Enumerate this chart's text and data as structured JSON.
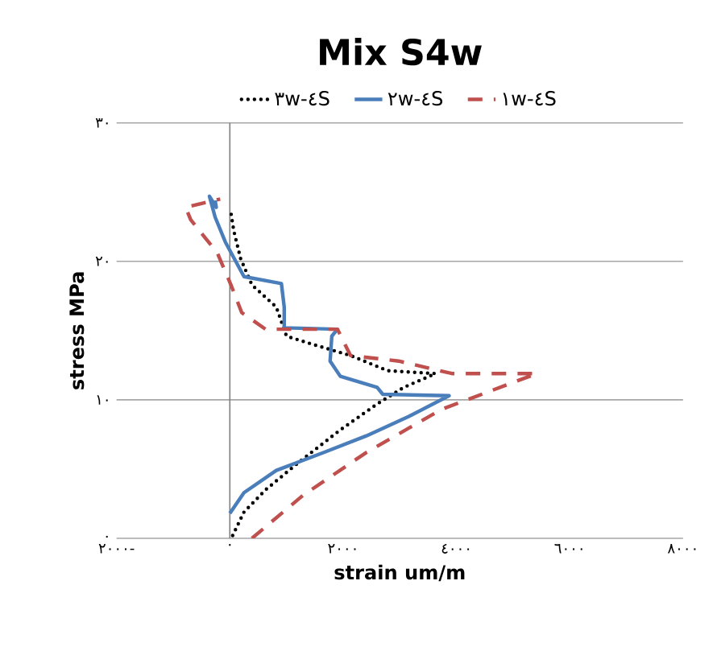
{
  "chart_data": {
    "type": "line",
    "title": "Mix S4w",
    "xlabel": "strain um/m",
    "ylabel": "stress MPa",
    "legend": "top",
    "grid": "y",
    "marker": "none",
    "xlim": [
      -2000,
      8000
    ],
    "ylim": [
      0,
      30
    ],
    "xticks": [
      {
        "value": -2000,
        "label": "٢٠٠٠-"
      },
      {
        "value": 0,
        "label": "٠"
      },
      {
        "value": 2000,
        "label": "٢٠٠٠"
      },
      {
        "value": 4000,
        "label": "٤٠٠٠"
      },
      {
        "value": 6000,
        "label": "٦٠٠٠"
      },
      {
        "value": 8000,
        "label": "٨٠٠٠"
      }
    ],
    "yticks": [
      {
        "value": 0,
        "label": "٠"
      },
      {
        "value": 10,
        "label": "١٠"
      },
      {
        "value": 20,
        "label": "٢٠"
      },
      {
        "value": 30,
        "label": "٣٠"
      }
    ],
    "series": [
      {
        "name": "٣w-٤S",
        "color": "#000000",
        "line_style": "dotted",
        "x": [
          50,
          250,
          630,
          1190,
          1940,
          2600,
          3070,
          3630,
          2790,
          2130,
          1470,
          1000,
          820,
          390,
          190,
          70,
          20
        ],
        "values": [
          0.2,
          1.9,
          3.5,
          5.4,
          7.8,
          9.7,
          10.9,
          11.9,
          12.1,
          13.2,
          14.0,
          14.6,
          16.7,
          18.3,
          20.2,
          22.2,
          23.5
        ]
      },
      {
        "name": "٢w-٤S",
        "color": "#4a7ebb",
        "line_style": "solid",
        "x": [
          0,
          250,
          820,
          1660,
          2410,
          3160,
          3870,
          2700,
          2600,
          1950,
          1770,
          1800,
          1900,
          960,
          960,
          910,
          250,
          -80,
          -260,
          -360,
          -240,
          -260
        ],
        "values": [
          1.8,
          3.3,
          4.9,
          6.2,
          7.4,
          8.8,
          10.3,
          10.4,
          10.9,
          11.7,
          12.8,
          14.6,
          15.1,
          15.2,
          16.7,
          18.4,
          18.9,
          21.4,
          23.2,
          24.7,
          23.9,
          24.4
        ]
      },
      {
        "name": "١w-٤S",
        "color": "#c0504d",
        "line_style": "dashed",
        "x": [
          390,
          1290,
          2410,
          3730,
          5420,
          3920,
          2980,
          2130,
          1900,
          630,
          210,
          20,
          -220,
          -690,
          -780,
          -170
        ],
        "values": [
          0,
          3.1,
          6.2,
          9.3,
          11.9,
          11.9,
          12.8,
          13.2,
          15.1,
          15.1,
          16.3,
          18.3,
          20.6,
          23.0,
          23.9,
          24.5
        ]
      }
    ]
  }
}
